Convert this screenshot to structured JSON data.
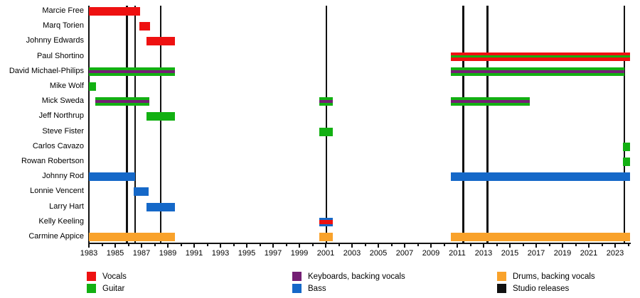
{
  "chart_data": {
    "type": "bar",
    "subtype": "band-members-timeline-gantt",
    "title": "",
    "x_axis": {
      "min": 1983,
      "max": 2024.15,
      "labeled_years": [
        1983,
        1985,
        1987,
        1989,
        1991,
        1993,
        1995,
        1997,
        1999,
        2001,
        2003,
        2005,
        2007,
        2009,
        2011,
        2013,
        2015,
        2017,
        2019,
        2021,
        2023
      ],
      "minor_years": [
        1984,
        1986,
        1988,
        1990,
        1992,
        1994,
        1996,
        1998,
        2000,
        2002,
        2004,
        2006,
        2008,
        2010,
        2012,
        2014,
        2016,
        2018,
        2020,
        2022,
        2024
      ],
      "grid": false
    },
    "palette": {
      "vocals": "#ee1111",
      "guitar": "#12b012",
      "keyboards": "#741f74",
      "bass": "#1568c8",
      "drums": "#f9a22b",
      "releases": "#111111"
    },
    "members": [
      {
        "name": "Marcie Free",
        "stints": [
          {
            "start": 1983.0,
            "end": 1986.9,
            "roles": [
              "vocals"
            ]
          }
        ]
      },
      {
        "name": "Marq Torien",
        "stints": [
          {
            "start": 1986.85,
            "end": 1987.65,
            "roles": [
              "vocals"
            ]
          }
        ]
      },
      {
        "name": "Johnny Edwards",
        "stints": [
          {
            "start": 1987.4,
            "end": 1989.55,
            "roles": [
              "vocals"
            ]
          }
        ]
      },
      {
        "name": "Paul Shortino",
        "stints": [
          {
            "start": 2010.5,
            "end": 2024.15,
            "roles": [
              "vocals",
              "guitar",
              "vocals"
            ],
            "weights": [
              4,
              3,
              4
            ]
          }
        ]
      },
      {
        "name": "David Michael-Philips",
        "stints": [
          {
            "start": 1983.0,
            "end": 1989.55,
            "roles": [
              "guitar",
              "keyboards",
              "guitar"
            ]
          },
          {
            "start": 2010.5,
            "end": 2023.7,
            "roles": [
              "guitar",
              "keyboards",
              "guitar"
            ]
          }
        ]
      },
      {
        "name": "Mike Wolf",
        "stints": [
          {
            "start": 1983.0,
            "end": 1983.55,
            "roles": [
              "guitar"
            ]
          }
        ]
      },
      {
        "name": "Mick Sweda",
        "stints": [
          {
            "start": 1983.5,
            "end": 1987.6,
            "roles": [
              "guitar",
              "keyboards",
              "guitar"
            ]
          },
          {
            "start": 2000.5,
            "end": 2001.55,
            "roles": [
              "guitar",
              "keyboards",
              "guitar"
            ]
          },
          {
            "start": 2010.5,
            "end": 2016.5,
            "roles": [
              "guitar",
              "keyboards",
              "guitar"
            ]
          }
        ]
      },
      {
        "name": "Jeff Northrup",
        "stints": [
          {
            "start": 1987.4,
            "end": 1989.55,
            "roles": [
              "guitar"
            ]
          }
        ]
      },
      {
        "name": "Steve Fister",
        "stints": [
          {
            "start": 2000.5,
            "end": 2001.55,
            "roles": [
              "guitar"
            ]
          }
        ]
      },
      {
        "name": "Carlos Cavazo",
        "stints": [
          {
            "start": 2023.6,
            "end": 2024.15,
            "roles": [
              "guitar"
            ]
          }
        ]
      },
      {
        "name": "Rowan Robertson",
        "stints": [
          {
            "start": 2023.6,
            "end": 2024.15,
            "roles": [
              "guitar"
            ]
          }
        ]
      },
      {
        "name": "Johnny Rod",
        "stints": [
          {
            "start": 1983.0,
            "end": 1986.5,
            "roles": [
              "bass"
            ]
          },
          {
            "start": 2010.5,
            "end": 2024.15,
            "roles": [
              "bass"
            ]
          }
        ]
      },
      {
        "name": "Lonnie Vencent",
        "stints": [
          {
            "start": 1986.4,
            "end": 1987.55,
            "roles": [
              "bass"
            ]
          }
        ]
      },
      {
        "name": "Larry Hart",
        "stints": [
          {
            "start": 1987.4,
            "end": 1989.55,
            "roles": [
              "bass"
            ]
          }
        ]
      },
      {
        "name": "Kelly Keeling",
        "stints": [
          {
            "start": 2000.5,
            "end": 2001.55,
            "roles": [
              "bass",
              "vocals",
              "bass"
            ],
            "weights": [
              1,
              2,
              1
            ]
          }
        ]
      },
      {
        "name": "Carmine Appice",
        "stints": [
          {
            "start": 1983.0,
            "end": 1989.55,
            "roles": [
              "drums"
            ]
          },
          {
            "start": 2000.5,
            "end": 2001.55,
            "roles": [
              "drums"
            ]
          },
          {
            "start": 2010.5,
            "end": 2024.15,
            "roles": [
              "drums"
            ]
          }
        ]
      }
    ],
    "studio_releases_years": [
      1985.9,
      1986.5,
      1988.45,
      2001.05,
      2011.45,
      2013.3,
      2023.7
    ],
    "legend": {
      "position": "bottom",
      "items": [
        {
          "label": "Vocals",
          "role": "vocals"
        },
        {
          "label": "Guitar",
          "role": "guitar"
        },
        {
          "label": "Keyboards, backing vocals",
          "role": "keyboards"
        },
        {
          "label": "Bass",
          "role": "bass"
        },
        {
          "label": "Drums, backing vocals",
          "role": "drums"
        },
        {
          "label": "Studio releases",
          "role": "releases"
        }
      ]
    }
  }
}
